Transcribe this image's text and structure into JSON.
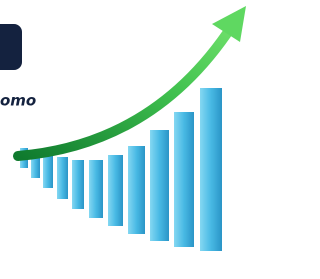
{
  "banner": {
    "label": "omo"
  }
}
